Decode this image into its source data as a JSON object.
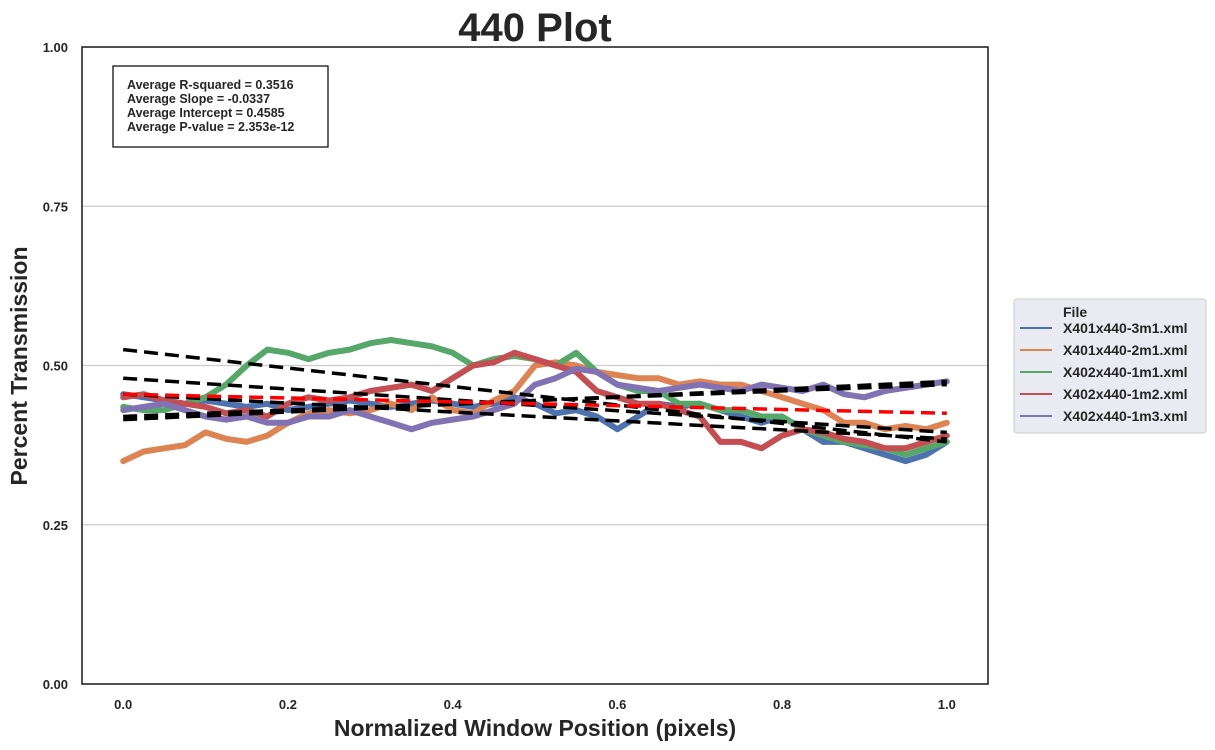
{
  "chart_data": {
    "type": "line",
    "title": "440 Plot",
    "xlabel": "Normalized Window Position (pixels)",
    "ylabel": "Percent Transmission",
    "xlim": [
      -0.05,
      1.05
    ],
    "ylim": [
      0,
      1
    ],
    "x_ticks": [
      "0.0",
      "0.2",
      "0.4",
      "0.6",
      "0.8",
      "1.0"
    ],
    "y_ticks": [
      "0.00",
      "0.25",
      "0.50",
      "0.75",
      "1.00"
    ],
    "grid": "horizontal",
    "legend_position": "right",
    "legend_title": "File",
    "stats": [
      "Average R-squared = 0.3516",
      "Average Slope = -0.0337",
      "Average Intercept = 0.4585",
      "Average P-value = 2.353e-12"
    ],
    "x": [
      0.0,
      0.025,
      0.05,
      0.075,
      0.1,
      0.125,
      0.15,
      0.175,
      0.2,
      0.225,
      0.25,
      0.275,
      0.3,
      0.325,
      0.35,
      0.375,
      0.4,
      0.425,
      0.45,
      0.475,
      0.5,
      0.525,
      0.55,
      0.575,
      0.6,
      0.625,
      0.65,
      0.675,
      0.7,
      0.725,
      0.75,
      0.775,
      0.8,
      0.825,
      0.85,
      0.875,
      0.9,
      0.925,
      0.95,
      0.975,
      1.0
    ],
    "series": [
      {
        "name": "X401x440-3m1.xml",
        "color": "#4c72b0",
        "values": [
          0.455,
          0.45,
          0.445,
          0.44,
          0.445,
          0.44,
          0.435,
          0.44,
          0.43,
          0.435,
          0.44,
          0.445,
          0.44,
          0.435,
          0.44,
          0.445,
          0.44,
          0.435,
          0.44,
          0.45,
          0.44,
          0.425,
          0.43,
          0.42,
          0.4,
          0.42,
          0.44,
          0.435,
          0.44,
          0.43,
          0.42,
          0.41,
          0.42,
          0.4,
          0.38,
          0.38,
          0.37,
          0.36,
          0.35,
          0.36,
          0.38
        ],
        "fit": [
          0.455,
          0.385
        ]
      },
      {
        "name": "X401x440-2m1.xml",
        "color": "#dd8452",
        "values": [
          0.35,
          0.365,
          0.37,
          0.375,
          0.395,
          0.385,
          0.38,
          0.39,
          0.41,
          0.425,
          0.43,
          0.425,
          0.43,
          0.44,
          0.43,
          0.45,
          0.43,
          0.425,
          0.445,
          0.46,
          0.5,
          0.505,
          0.5,
          0.49,
          0.485,
          0.48,
          0.48,
          0.47,
          0.475,
          0.47,
          0.47,
          0.46,
          0.45,
          0.44,
          0.43,
          0.41,
          0.41,
          0.4,
          0.405,
          0.4,
          0.41
        ],
        "fit": [
          0.415,
          0.475
        ]
      },
      {
        "name": "X402x440-1m1.xml",
        "color": "#55a868",
        "values": [
          0.435,
          0.43,
          0.43,
          0.44,
          0.45,
          0.47,
          0.5,
          0.525,
          0.52,
          0.51,
          0.52,
          0.525,
          0.535,
          0.54,
          0.535,
          0.53,
          0.52,
          0.5,
          0.51,
          0.515,
          0.51,
          0.5,
          0.52,
          0.49,
          0.47,
          0.46,
          0.46,
          0.44,
          0.44,
          0.43,
          0.43,
          0.42,
          0.42,
          0.4,
          0.39,
          0.38,
          0.375,
          0.37,
          0.36,
          0.37,
          0.38
        ],
        "fit": [
          0.525,
          0.38
        ]
      },
      {
        "name": "X402x440-1m2.xml",
        "color": "#c44e52",
        "values": [
          0.45,
          0.455,
          0.445,
          0.44,
          0.435,
          0.425,
          0.43,
          0.42,
          0.44,
          0.45,
          0.445,
          0.45,
          0.46,
          0.465,
          0.47,
          0.46,
          0.48,
          0.5,
          0.505,
          0.52,
          0.51,
          0.5,
          0.49,
          0.46,
          0.45,
          0.44,
          0.44,
          0.43,
          0.42,
          0.38,
          0.38,
          0.37,
          0.39,
          0.4,
          0.395,
          0.385,
          0.38,
          0.37,
          0.37,
          0.38,
          0.39
        ],
        "fit": [
          0.48,
          0.395
        ]
      },
      {
        "name": "X402x440-1m3.xml",
        "color": "#8172b3",
        "values": [
          0.43,
          0.435,
          0.44,
          0.43,
          0.42,
          0.415,
          0.42,
          0.41,
          0.41,
          0.42,
          0.42,
          0.43,
          0.42,
          0.41,
          0.4,
          0.41,
          0.415,
          0.42,
          0.43,
          0.44,
          0.47,
          0.48,
          0.495,
          0.49,
          0.47,
          0.465,
          0.46,
          0.465,
          0.47,
          0.465,
          0.46,
          0.47,
          0.465,
          0.46,
          0.47,
          0.455,
          0.45,
          0.46,
          0.465,
          0.47,
          0.475
        ],
        "fit": [
          0.42,
          0.47
        ]
      }
    ],
    "average_fit": {
      "color": "#ff0000",
      "values": [
        0.455,
        0.425
      ]
    }
  }
}
